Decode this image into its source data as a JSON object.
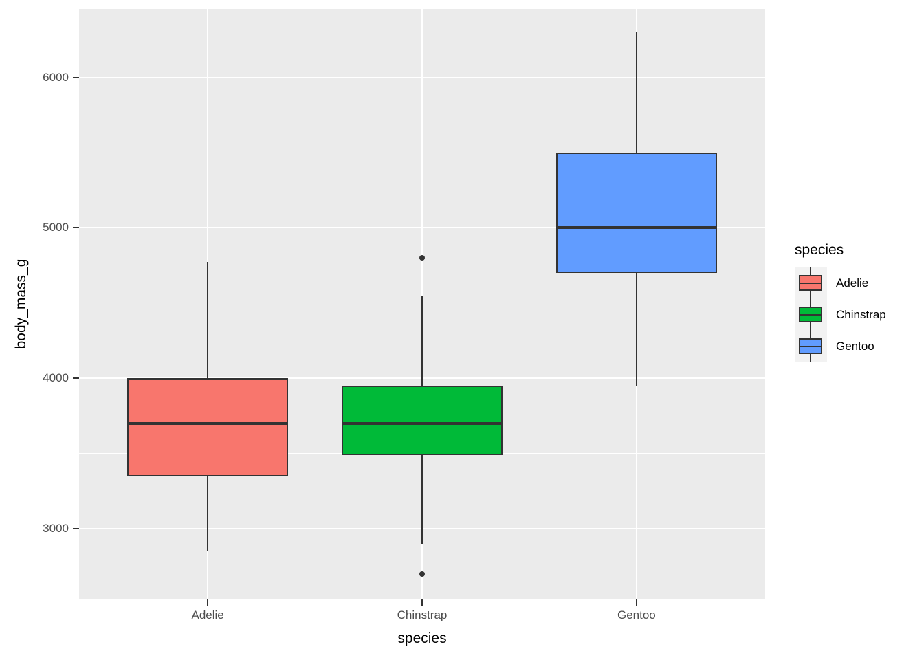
{
  "chart_data": {
    "type": "boxplot",
    "title": "",
    "xlabel": "species",
    "ylabel": "body_mass_g",
    "categories": [
      "Adelie",
      "Chinstrap",
      "Gentoo"
    ],
    "series": [
      {
        "name": "Adelie",
        "color": "#F8766D",
        "whisker_low": 2850,
        "q1": 3350,
        "median": 3700,
        "q3": 4000,
        "whisker_high": 4775,
        "outliers": []
      },
      {
        "name": "Chinstrap",
        "color": "#00BA38",
        "whisker_low": 2900,
        "q1": 3487.5,
        "median": 3700,
        "q3": 3950,
        "whisker_high": 4550,
        "outliers": [
          2700,
          4800
        ]
      },
      {
        "name": "Gentoo",
        "color": "#619CFF",
        "whisker_low": 3950,
        "q1": 4700,
        "median": 5000,
        "q3": 5500,
        "whisker_high": 6300,
        "outliers": []
      }
    ],
    "ylim": [
      2530,
      6455
    ],
    "y_major_ticks": [
      3000,
      4000,
      5000,
      6000
    ],
    "y_minor_ticks": [
      3500,
      4500,
      5500
    ],
    "grid": true,
    "legend_title": "species",
    "legend_position": "right",
    "colors": {
      "panel_bg": "#EBEBEB",
      "grid": "#FFFFFF",
      "box_border": "#333333",
      "median": "#333333",
      "outlier": "#333333",
      "tick_label": "#4D4D4D",
      "axis_title": "#000000",
      "legend_key_bg": "#F2F2F2"
    }
  }
}
